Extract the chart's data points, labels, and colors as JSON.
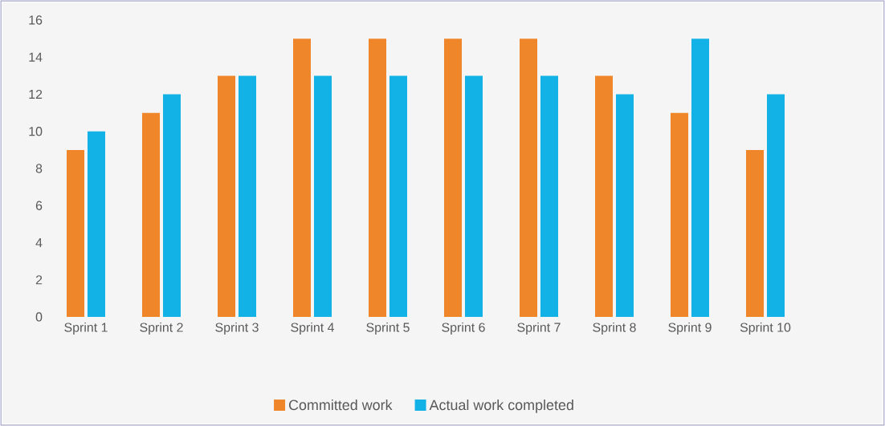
{
  "chart_data": {
    "type": "bar",
    "categories": [
      "Sprint 1",
      "Sprint 2",
      "Sprint 3",
      "Sprint 4",
      "Sprint 5",
      "Sprint 6",
      "Sprint 7",
      "Sprint 8",
      "Sprint 9",
      "Sprint 10"
    ],
    "series": [
      {
        "name": "Committed work",
        "color": "#f0862a",
        "values": [
          9,
          11,
          13,
          15,
          15,
          15,
          15,
          13,
          11,
          9
        ]
      },
      {
        "name": "Actual work completed",
        "color": "#12b2e6",
        "values": [
          10,
          12,
          13,
          13,
          13,
          13,
          13,
          12,
          15,
          12
        ]
      }
    ],
    "ylim": [
      0,
      16
    ],
    "yticks": [
      0,
      2,
      4,
      6,
      8,
      10,
      12,
      14,
      16
    ],
    "grid": false,
    "legend": "bottom"
  }
}
